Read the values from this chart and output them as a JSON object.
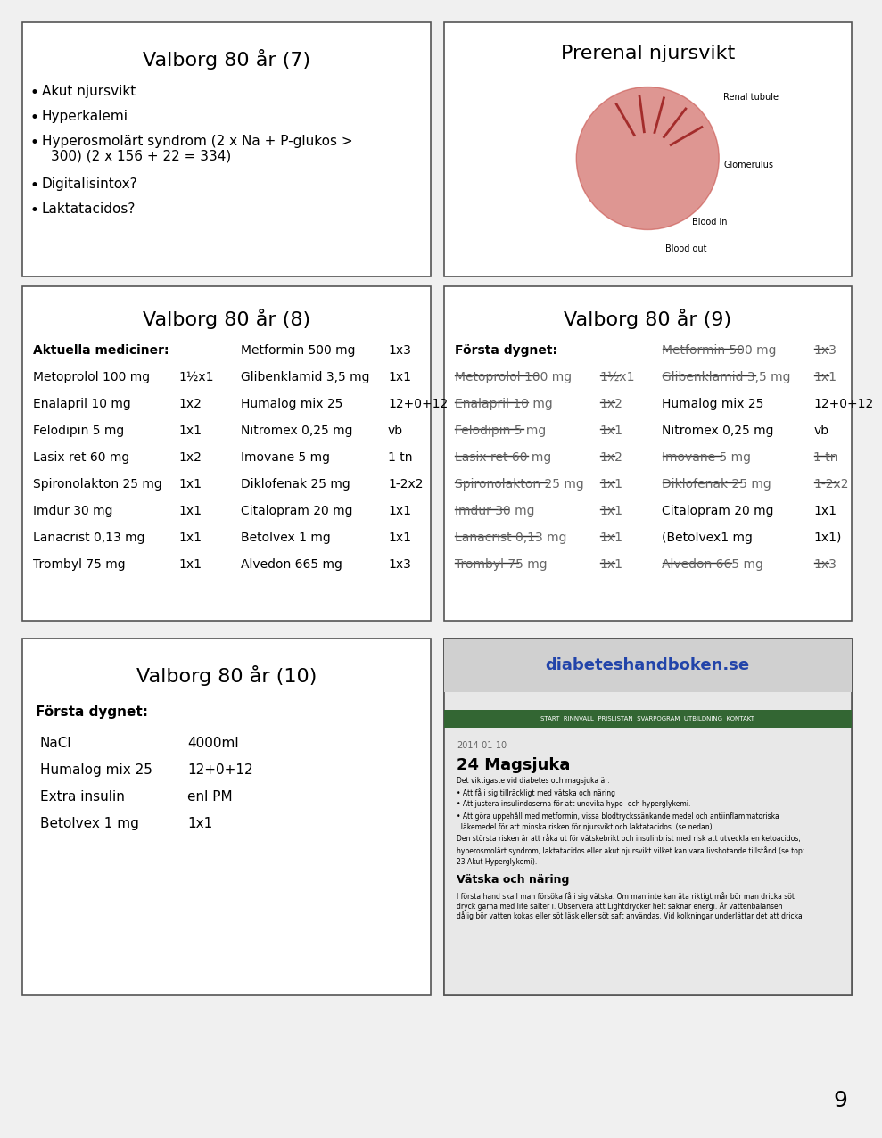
{
  "bg_color": "#f0f0f0",
  "page_bg": "#f0f0f0",
  "box_color": "#ffffff",
  "border_color": "#555555",
  "page_num": "9",
  "box1_title": "Valborg 80 år (7)",
  "box1_bullets": [
    "Akut njursvikt",
    "Hyperkalemi",
    "Hyperosmolärt syndrom (2 x Na + P-glukos >\n300) (2 x 156 + 22 = 334)"
  ],
  "box1_bullets2": [
    "Digitalisintox?",
    "Laktatacidos?"
  ],
  "box2_title": "Prerenal njursvikt",
  "box3_title": "Valborg 80 år (8)",
  "box3_header": "Aktuella mediciner:",
  "box3_left": [
    [
      "Metoprolol 100 mg",
      "1½x1"
    ],
    [
      "Enalapril 10 mg",
      "1x2"
    ],
    [
      "Felodipin 5 mg",
      "1x1"
    ],
    [
      "Lasix ret 60 mg",
      "1x2"
    ],
    [
      "Spironolakton 25 mg",
      "1x1"
    ],
    [
      "Imdur 30 mg",
      "1x1"
    ],
    [
      "Lanacrist 0,13 mg",
      "1x1"
    ],
    [
      "Trombyl 75 mg",
      "1x1"
    ]
  ],
  "box3_right": [
    [
      "Metformin 500 mg",
      "1x3"
    ],
    [
      "Glibenklamid 3,5 mg",
      "1x1"
    ],
    [
      "Humalog mix 25",
      "12+0+12"
    ],
    [
      "Nitromex 0,25 mg",
      "vb"
    ],
    [
      "Imovane 5 mg",
      "1 tn"
    ],
    [
      "Diklofenak 25 mg",
      "1-2x2"
    ],
    [
      "Citalopram 20 mg",
      "1x1"
    ],
    [
      "Betolvex 1 mg",
      "1x1"
    ],
    [
      "Alvedon 665 mg",
      "1x3"
    ]
  ],
  "box4_title": "Valborg 80 år (9)",
  "box4_header": "Första dygnet:",
  "box4_left_struck": [
    [
      "Metoprolol 100 mg",
      "1½x1"
    ],
    [
      "Enalapril 10 mg",
      "1x2"
    ],
    [
      "Felodipin 5 mg",
      "1x1"
    ],
    [
      "Lasix ret 60 mg",
      "1x2"
    ],
    [
      "Spironolakton 25 mg",
      "1x1"
    ],
    [
      "Imdur 30 mg",
      "1x1"
    ],
    [
      "Lanacrist 0,13 mg",
      "1x1"
    ],
    [
      "Trombyl 75 mg",
      "1x1"
    ]
  ],
  "box4_right": [
    [
      "Metformin 500 mg",
      "1x3",
      true
    ],
    [
      "Glibenklamid 3,5 mg",
      "1x1",
      true
    ],
    [
      "Humalog mix 25",
      "12+0+12",
      false
    ],
    [
      "Nitromex 0,25 mg",
      "vb",
      false
    ],
    [
      "Imovane 5 mg",
      "1 tn",
      true
    ],
    [
      "Diklofenak 25 mg",
      "1-2x2",
      true
    ],
    [
      "Citalopram 20 mg",
      "1x1",
      false
    ],
    [
      "(Betolvex1 mg",
      "1x1)",
      false
    ],
    [
      "Alvedon 665 mg",
      "1x3",
      true
    ]
  ],
  "box5_title": "Valborg 80 år (10)",
  "box5_header": "Första dygnet:",
  "box5_items": [
    [
      "NaCl",
      "4000ml"
    ],
    [
      "Humalog mix 25",
      "12+0+12"
    ],
    [
      "Extra insulin",
      "enl PM"
    ],
    [
      "Betolvex 1 mg",
      "1x1"
    ]
  ],
  "box6_title": "diabeteshandboken.se",
  "box6_subtitle": "24 Magsjuka"
}
